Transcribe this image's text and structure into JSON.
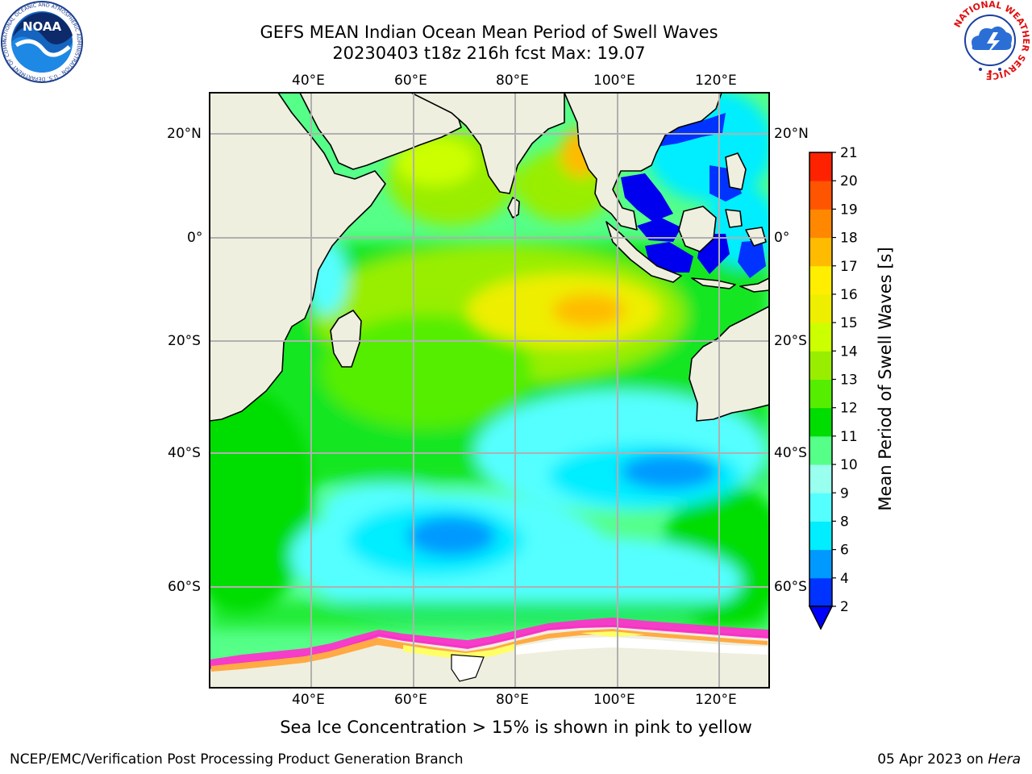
{
  "title": {
    "line1": "GEFS MEAN Indian Ocean Mean Period of Swell Waves",
    "line2": "20230403 t18z 216h fcst   Max: 19.07"
  },
  "map": {
    "projection": "cylindrical",
    "lon_range": [
      20,
      130
    ],
    "lat_range": [
      -72,
      27
    ],
    "lon_ticks": [
      "40°E",
      "60°E",
      "80°E",
      "100°E",
      "120°E"
    ],
    "lat_ticks": [
      "20°N",
      "0°",
      "20°S",
      "40°S",
      "60°S"
    ],
    "grid": true,
    "land_color": "#efefdf",
    "sea_ice_colors": [
      "#ff33cc",
      "#ffaa44",
      "#ffff66"
    ]
  },
  "colorbar": {
    "label": "Mean Period of Swell Waves [s]",
    "tick_labels": [
      "2",
      "4",
      "6",
      "8",
      "9",
      "10",
      "11",
      "12",
      "13",
      "14",
      "15",
      "16",
      "17",
      "18",
      "19",
      "20",
      "21"
    ],
    "extend": "min",
    "colors": [
      "#0033ff",
      "#0099ff",
      "#00eeff",
      "#55ffff",
      "#99ffee",
      "#55ff88",
      "#00dd00",
      "#55ee00",
      "#99ee00",
      "#ccff00",
      "#eeee00",
      "#ffee00",
      "#ffbb00",
      "#ff8800",
      "#ff5500",
      "#ff2200"
    ],
    "under_color": "#0000ff"
  },
  "caption": "Sea Ice Concentration > 15% is shown in pink to yellow",
  "footer": {
    "left": "NCEP/EMC/Verification Post Processing Product Generation Branch",
    "right_prefix": "05 Apr 2023 on",
    "right_host": "Hera"
  },
  "logos": {
    "noaa": "NOAA",
    "nws_ring": "NATIONAL WEATHER SERVICE",
    "noaa_ring": "NATIONAL OCEANIC AND ATMOSPHERIC ADMINISTRATION · U.S. DEPARTMENT OF COMMERCE"
  }
}
